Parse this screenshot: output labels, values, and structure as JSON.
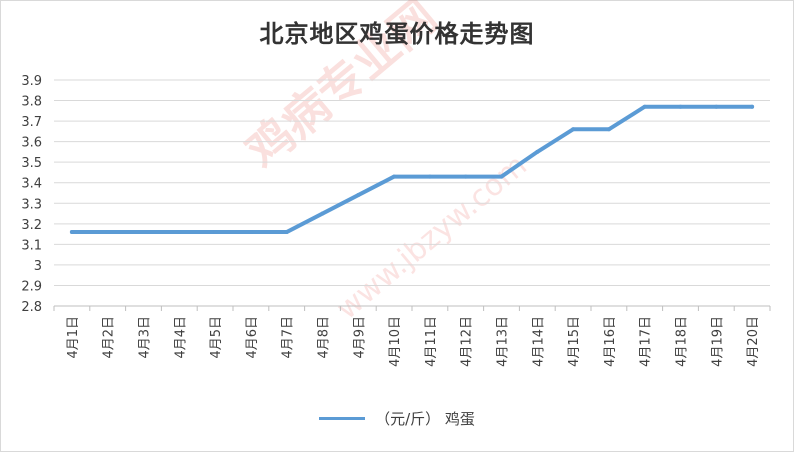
{
  "chart_data": {
    "type": "line",
    "title": "北京地区鸡蛋价格走势图",
    "xlabel": "",
    "ylabel": "",
    "categories": [
      "4月1日",
      "4月2日",
      "4月3日",
      "4月4日",
      "4月5日",
      "4月6日",
      "4月7日",
      "4月8日",
      "4月9日",
      "4月10日",
      "4月11日",
      "4月12日",
      "4月13日",
      "4月14日",
      "4月15日",
      "4月16日",
      "4月17日",
      "4月18日",
      "4月19日",
      "4月20日"
    ],
    "series": [
      {
        "name": "（元/斤） 鸡蛋",
        "color": "#5b9bd5",
        "values": [
          3.16,
          3.16,
          3.16,
          3.16,
          3.16,
          3.16,
          3.16,
          3.25,
          3.34,
          3.43,
          3.43,
          3.43,
          3.43,
          3.55,
          3.66,
          3.66,
          3.77,
          3.77,
          3.77,
          3.77
        ]
      }
    ],
    "yticks": [
      "2.8",
      "2.9",
      "3",
      "3.1",
      "3.2",
      "3.3",
      "3.4",
      "3.5",
      "3.6",
      "3.7",
      "3.8",
      "3.9"
    ],
    "ylim": [
      2.8,
      3.9
    ],
    "grid": "horizontal",
    "legend_position": "bottom"
  },
  "watermark": {
    "text": "鸡病专业网",
    "url": "www.jbzyw.com",
    "color": "#e23c32"
  }
}
